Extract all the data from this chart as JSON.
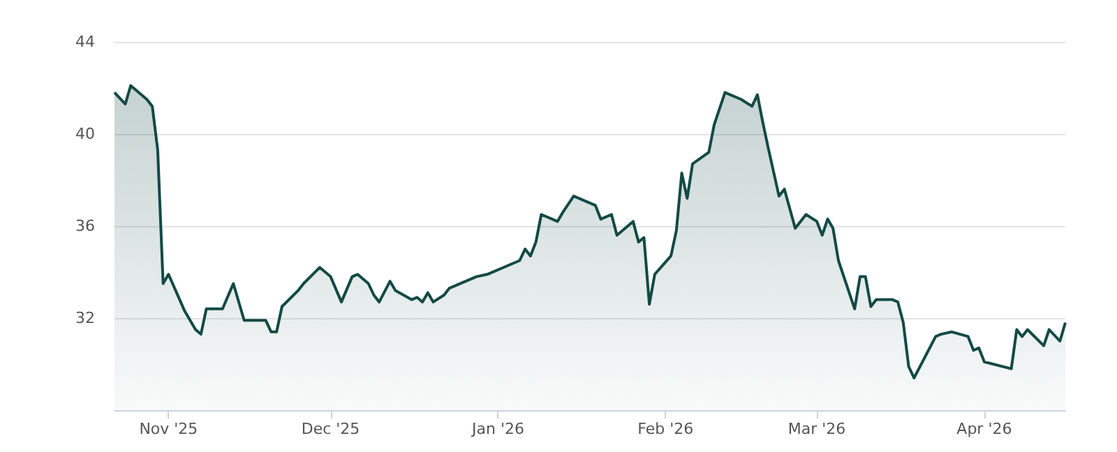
{
  "chart_data": {
    "type": "area",
    "x": [
      "2025-10-22",
      "2025-10-24",
      "2025-10-25",
      "2025-10-28",
      "2025-10-29",
      "2025-10-30",
      "2025-10-31",
      "2025-11-01",
      "2025-11-04",
      "2025-11-06",
      "2025-11-07",
      "2025-11-08",
      "2025-11-11",
      "2025-11-13",
      "2025-11-15",
      "2025-11-19",
      "2025-11-20",
      "2025-11-21",
      "2025-11-22",
      "2025-11-25",
      "2025-11-26",
      "2025-11-29",
      "2025-12-01",
      "2025-12-03",
      "2025-12-05",
      "2025-12-06",
      "2025-12-08",
      "2025-12-09",
      "2025-12-10",
      "2025-12-12",
      "2025-12-13",
      "2025-12-16",
      "2025-12-17",
      "2025-12-18",
      "2025-12-19",
      "2025-12-20",
      "2025-12-22",
      "2025-12-23",
      "2025-12-28",
      "2025-12-30",
      "2026-01-05",
      "2026-01-06",
      "2026-01-07",
      "2026-01-08",
      "2026-01-09",
      "2026-01-12",
      "2026-01-13",
      "2026-01-15",
      "2026-01-19",
      "2026-01-20",
      "2026-01-22",
      "2026-01-23",
      "2026-01-26",
      "2026-01-27",
      "2026-01-28",
      "2026-01-29",
      "2026-01-30",
      "2026-02-02",
      "2026-02-03",
      "2026-02-04",
      "2026-02-05",
      "2026-02-06",
      "2026-02-09",
      "2026-02-10",
      "2026-02-12",
      "2026-02-15",
      "2026-02-17",
      "2026-02-18",
      "2026-02-19",
      "2026-02-20",
      "2026-02-22",
      "2026-02-23",
      "2026-02-25",
      "2026-02-27",
      "2026-03-01",
      "2026-03-02",
      "2026-03-03",
      "2026-03-04",
      "2026-03-05",
      "2026-03-08",
      "2026-03-09",
      "2026-03-10",
      "2026-03-11",
      "2026-03-12",
      "2026-03-15",
      "2026-03-16",
      "2026-03-17",
      "2026-03-18",
      "2026-03-19",
      "2026-03-23",
      "2026-03-24",
      "2026-03-26",
      "2026-03-29",
      "2026-03-30",
      "2026-03-31",
      "2026-04-01",
      "2026-04-06",
      "2026-04-07",
      "2026-04-08",
      "2026-04-09",
      "2026-04-12",
      "2026-04-13",
      "2026-04-15",
      "2026-04-16"
    ],
    "series": [
      {
        "color": "#134a45",
        "values": [
          41.8,
          41.3,
          42.1,
          41.5,
          41.2,
          39.3,
          33.5,
          33.9,
          32.3,
          31.5,
          31.3,
          32.4,
          32.4,
          33.5,
          31.9,
          31.9,
          31.4,
          31.4,
          32.5,
          33.2,
          33.5,
          34.2,
          33.8,
          32.7,
          33.8,
          33.9,
          33.5,
          33.0,
          32.7,
          33.6,
          33.2,
          32.8,
          32.9,
          32.7,
          33.1,
          32.7,
          33.0,
          33.3,
          33.8,
          33.9,
          34.5,
          35.0,
          34.7,
          35.3,
          36.5,
          36.2,
          36.6,
          37.3,
          36.9,
          36.3,
          36.5,
          35.6,
          36.2,
          35.3,
          35.5,
          32.6,
          33.9,
          34.7,
          35.8,
          38.3,
          37.2,
          38.7,
          39.2,
          40.4,
          41.8,
          41.5,
          41.2,
          41.7,
          40.5,
          39.4,
          37.3,
          37.6,
          35.9,
          36.5,
          36.2,
          35.6,
          36.3,
          35.9,
          34.5,
          32.4,
          33.8,
          33.8,
          32.5,
          32.8,
          32.8,
          32.7,
          31.8,
          29.9,
          29.4,
          31.2,
          31.3,
          31.4,
          31.2,
          30.6,
          30.7,
          30.1,
          29.8,
          31.5,
          31.2,
          31.5,
          30.8,
          31.5,
          31.0,
          31.8
        ]
      }
    ],
    "xlim": [
      "2025-10-22",
      "2026-04-16"
    ],
    "xticks": [
      {
        "value": "2025-11-01",
        "label": "Nov '25"
      },
      {
        "value": "2025-12-01",
        "label": "Dec '25"
      },
      {
        "value": "2026-01-01",
        "label": "Jan '26"
      },
      {
        "value": "2026-02-01",
        "label": "Feb '26"
      },
      {
        "value": "2026-03-01",
        "label": "Mar '26"
      },
      {
        "value": "2026-04-01",
        "label": "Apr '26"
      }
    ],
    "ylim": [
      28,
      44
    ],
    "yticks": [
      32,
      36,
      40,
      44
    ],
    "grid": "y",
    "marker": "none"
  }
}
